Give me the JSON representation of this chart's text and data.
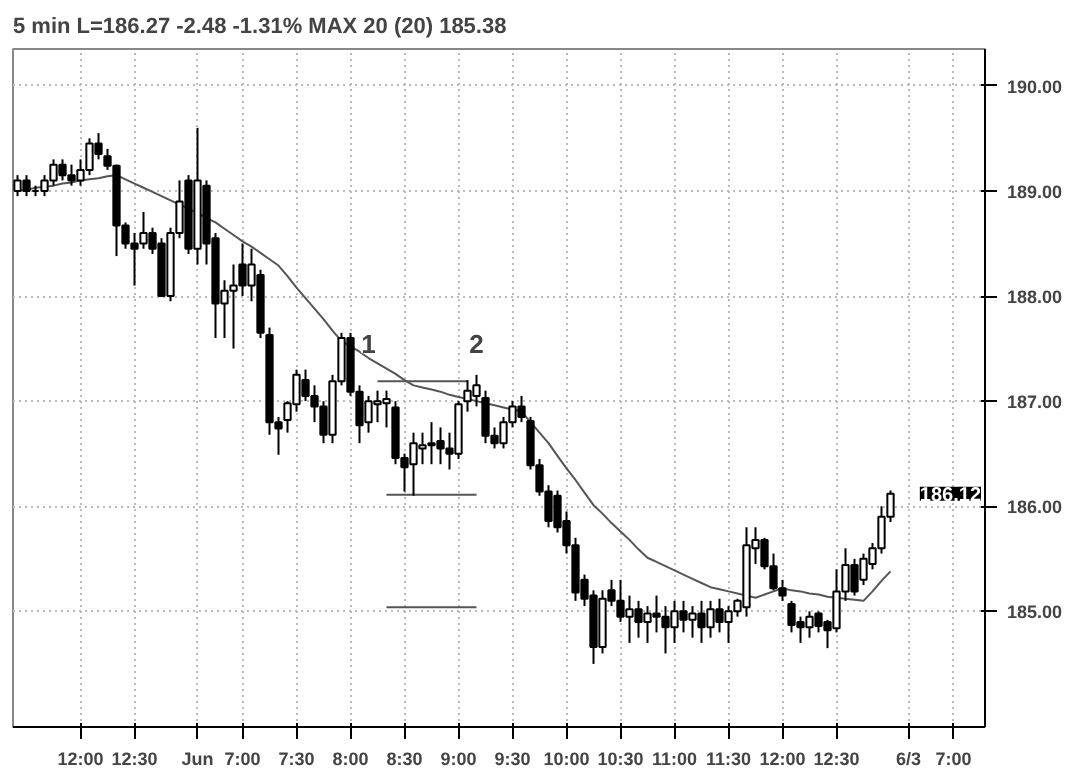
{
  "chart_data": {
    "type": "candlestick",
    "title": "5 min  L=186.27  -2.48  -1.31%  MAX 20 (20)  185.38",
    "color": "#000000",
    "grid": true,
    "categories": [
      null,
      null,
      null,
      null,
      null,
      null,
      null,
      "12:00",
      null,
      null,
      null,
      null,
      null,
      "12:30",
      null,
      null,
      null,
      null,
      null,
      null,
      "Jun",
      null,
      null,
      null,
      null,
      "7:00",
      null,
      null,
      null,
      null,
      null,
      "7:30",
      null,
      null,
      null,
      null,
      null,
      "8:00",
      null,
      null,
      null,
      null,
      null,
      "8:30",
      null,
      null,
      null,
      null,
      null,
      "9:00",
      null,
      null,
      null,
      null,
      null,
      "9:30",
      null,
      null,
      null,
      null,
      null,
      "10:00",
      null,
      null,
      null,
      null,
      null,
      "10:30",
      null,
      null,
      null,
      null,
      null,
      "11:00",
      null,
      null,
      null,
      null,
      null,
      "11:30",
      null,
      null,
      null,
      null,
      null,
      "12:00",
      null,
      null,
      null,
      null,
      null,
      "12:30",
      null,
      null,
      null,
      null,
      null,
      null,
      null,
      "6/3",
      null,
      null,
      null,
      null,
      "7:00",
      null,
      null,
      null
    ],
    "ohlc": [
      [
        189.0,
        189.15,
        188.95,
        189.1
      ],
      [
        189.1,
        189.15,
        188.95,
        189.0
      ],
      [
        189.0,
        189.05,
        188.95,
        189.0
      ],
      [
        189.0,
        189.15,
        188.95,
        189.1
      ],
      [
        189.1,
        189.3,
        189.05,
        189.25
      ],
      [
        189.25,
        189.3,
        189.1,
        189.15
      ],
      [
        189.15,
        189.25,
        189.05,
        189.1
      ],
      [
        189.1,
        189.3,
        189.05,
        189.2
      ],
      [
        189.2,
        189.5,
        189.15,
        189.45
      ],
      [
        189.45,
        189.55,
        189.3,
        189.35
      ],
      [
        189.33,
        189.4,
        189.2,
        189.24
      ],
      [
        189.24,
        189.25,
        188.38,
        188.67
      ],
      [
        188.67,
        188.7,
        188.45,
        188.5
      ],
      [
        188.5,
        188.6,
        188.1,
        188.45
      ],
      [
        188.5,
        188.8,
        188.45,
        188.6
      ],
      [
        188.6,
        188.65,
        188.4,
        188.45
      ],
      [
        188.5,
        188.55,
        188.0,
        188.0
      ],
      [
        188.0,
        188.65,
        187.95,
        188.6
      ],
      [
        188.6,
        189.1,
        188.55,
        188.9
      ],
      [
        189.1,
        189.15,
        188.4,
        188.45
      ],
      [
        188.45,
        189.6,
        188.3,
        189.1
      ],
      [
        189.05,
        189.1,
        188.3,
        188.5
      ],
      [
        188.55,
        188.6,
        187.6,
        187.93
      ],
      [
        187.93,
        188.15,
        187.6,
        188.05
      ],
      [
        188.05,
        188.3,
        187.5,
        188.1
      ],
      [
        188.3,
        188.5,
        188.0,
        188.1
      ],
      [
        188.1,
        188.45,
        187.95,
        188.3
      ],
      [
        188.2,
        188.25,
        187.6,
        187.65
      ],
      [
        187.63,
        187.7,
        186.68,
        186.8
      ],
      [
        186.8,
        186.85,
        186.49,
        186.74
      ],
      [
        186.82,
        187.0,
        186.7,
        186.98
      ],
      [
        186.97,
        187.3,
        186.9,
        187.25
      ],
      [
        187.2,
        187.3,
        187.0,
        187.05
      ],
      [
        187.05,
        187.15,
        186.8,
        186.95
      ],
      [
        186.95,
        187.0,
        186.6,
        186.68
      ],
      [
        186.68,
        187.25,
        186.6,
        187.19
      ],
      [
        187.19,
        187.65,
        187.15,
        187.6
      ],
      [
        187.6,
        187.65,
        187.05,
        187.09
      ],
      [
        187.09,
        187.15,
        186.6,
        186.77
      ],
      [
        186.8,
        187.05,
        186.7,
        187.0
      ],
      [
        186.97,
        187.1,
        186.8,
        187.0
      ],
      [
        186.98,
        187.1,
        186.75,
        187.02
      ],
      [
        186.94,
        187.0,
        186.4,
        186.46
      ],
      [
        186.46,
        186.5,
        186.14,
        186.37
      ],
      [
        186.4,
        186.7,
        186.1,
        186.6
      ],
      [
        186.55,
        186.7,
        186.4,
        186.58
      ],
      [
        186.58,
        186.8,
        186.4,
        186.6
      ],
      [
        186.62,
        186.75,
        186.4,
        186.55
      ],
      [
        186.55,
        186.7,
        186.35,
        186.5
      ],
      [
        186.5,
        187.0,
        186.45,
        186.97
      ],
      [
        187.0,
        187.2,
        186.9,
        187.1
      ],
      [
        187.05,
        187.25,
        186.95,
        187.15
      ],
      [
        187.03,
        187.1,
        186.6,
        186.67
      ],
      [
        186.67,
        186.75,
        186.55,
        186.6
      ],
      [
        186.6,
        186.85,
        186.55,
        186.8
      ],
      [
        186.8,
        187.0,
        186.75,
        186.95
      ],
      [
        186.95,
        187.05,
        186.8,
        186.85
      ],
      [
        186.81,
        186.85,
        186.35,
        186.39
      ],
      [
        186.39,
        186.45,
        186.1,
        186.14
      ],
      [
        186.14,
        186.2,
        185.8,
        185.86
      ],
      [
        186.1,
        186.15,
        185.75,
        185.8
      ],
      [
        185.86,
        185.95,
        185.55,
        185.63
      ],
      [
        185.63,
        185.7,
        185.1,
        185.18
      ],
      [
        185.3,
        185.35,
        185.05,
        185.12
      ],
      [
        185.15,
        185.2,
        184.5,
        184.66
      ],
      [
        184.66,
        185.2,
        184.6,
        185.12
      ],
      [
        185.2,
        185.3,
        185.05,
        185.1
      ],
      [
        185.1,
        185.3,
        184.9,
        184.95
      ],
      [
        184.95,
        185.15,
        184.7,
        185.02
      ],
      [
        185.02,
        185.1,
        184.75,
        184.9
      ],
      [
        184.9,
        185.05,
        184.7,
        184.98
      ],
      [
        184.98,
        185.15,
        184.8,
        184.95
      ],
      [
        184.95,
        185.05,
        184.6,
        184.85
      ],
      [
        184.85,
        185.1,
        184.7,
        185.0
      ],
      [
        185.0,
        185.1,
        184.8,
        184.92
      ],
      [
        184.92,
        185.05,
        184.75,
        184.98
      ],
      [
        184.98,
        185.1,
        184.7,
        184.85
      ],
      [
        184.85,
        185.1,
        184.75,
        185.02
      ],
      [
        185.02,
        185.12,
        184.8,
        184.9
      ],
      [
        184.9,
        185.05,
        184.7,
        185.0
      ],
      [
        185.0,
        185.12,
        184.95,
        185.1
      ],
      [
        185.04,
        185.8,
        184.95,
        185.63
      ],
      [
        185.6,
        185.8,
        185.45,
        185.68
      ],
      [
        185.68,
        185.7,
        185.4,
        185.43
      ],
      [
        185.43,
        185.55,
        185.2,
        185.22
      ],
      [
        185.22,
        185.3,
        185.1,
        185.15
      ],
      [
        185.07,
        185.1,
        184.8,
        184.87
      ],
      [
        184.9,
        184.95,
        184.7,
        184.85
      ],
      [
        184.85,
        185.0,
        184.75,
        184.95
      ],
      [
        184.98,
        185.0,
        184.8,
        184.86
      ],
      [
        184.9,
        184.92,
        184.65,
        184.82
      ],
      [
        184.84,
        185.4,
        184.8,
        185.19
      ],
      [
        185.19,
        185.6,
        185.1,
        185.44
      ],
      [
        185.44,
        185.5,
        185.15,
        185.19
      ],
      [
        185.3,
        185.55,
        185.25,
        185.5
      ],
      [
        185.45,
        185.65,
        185.4,
        185.6
      ],
      [
        185.6,
        186.0,
        185.55,
        185.9
      ],
      [
        185.9,
        186.15,
        185.85,
        186.12
      ],
      null,
      null,
      null,
      null,
      null,
      null,
      null,
      null,
      null,
      null
    ],
    "series": [
      {
        "type": "line",
        "color": "#555555",
        "values": [
          189.0,
          189.01,
          189.03,
          189.04,
          189.05,
          189.07,
          189.08,
          189.1,
          189.11,
          189.12,
          189.14,
          189.15,
          189.11,
          189.07,
          189.03,
          188.99,
          188.95,
          188.91,
          188.87,
          188.83,
          188.79,
          188.74,
          188.7,
          188.64,
          188.58,
          188.52,
          188.47,
          188.41,
          188.35,
          188.29,
          188.19,
          188.08,
          187.98,
          187.88,
          187.78,
          187.67,
          187.57,
          187.52,
          187.47,
          187.41,
          187.36,
          187.31,
          187.26,
          187.2,
          187.15,
          187.13,
          187.11,
          187.09,
          187.06,
          187.04,
          187.02,
          187.0,
          186.98,
          186.96,
          186.94,
          186.92,
          186.9,
          186.8,
          186.7,
          186.6,
          186.48,
          186.36,
          186.25,
          186.13,
          186.01,
          185.93,
          185.84,
          185.76,
          185.68,
          185.59,
          185.51,
          185.47,
          185.43,
          185.39,
          185.35,
          185.31,
          185.27,
          185.23,
          185.21,
          185.19,
          185.17,
          185.15,
          185.13,
          185.16,
          185.19,
          185.22,
          185.2,
          185.19,
          185.17,
          185.16,
          185.14,
          185.13,
          185.12,
          185.11,
          185.1,
          185.19,
          185.29,
          185.38,
          null,
          null,
          null,
          null,
          null,
          null,
          null,
          null,
          null,
          null
        ]
      },
      {
        "type": "line",
        "color": "#555555",
        "values": [
          null,
          null,
          null,
          null,
          null,
          null,
          null,
          null,
          null,
          null,
          null,
          null,
          null,
          null,
          null,
          null,
          null,
          null,
          null,
          null,
          null,
          null,
          null,
          null,
          null,
          null,
          null,
          null,
          null,
          null,
          null,
          null,
          null,
          null,
          null,
          null,
          null,
          null,
          null,
          null,
          187.19,
          187.19,
          187.19,
          187.19,
          187.19,
          187.19,
          187.19,
          187.19,
          187.19,
          187.19,
          187.19,
          null,
          null,
          null,
          null,
          null,
          null,
          null,
          null,
          null,
          null,
          null,
          null,
          null,
          null,
          null,
          null,
          null,
          null,
          null,
          null,
          null,
          null,
          null,
          null,
          null,
          null,
          null,
          null,
          null,
          null,
          null,
          null,
          null,
          null,
          null,
          null,
          null,
          null,
          null,
          null,
          null,
          null,
          null,
          null,
          null,
          null,
          null,
          null,
          null,
          null,
          null,
          null,
          null,
          null,
          null,
          null,
          null
        ]
      },
      {
        "type": "line",
        "color": "#555555",
        "values": [
          null,
          null,
          null,
          null,
          null,
          null,
          null,
          null,
          null,
          null,
          null,
          null,
          null,
          null,
          null,
          null,
          null,
          null,
          null,
          null,
          null,
          null,
          null,
          null,
          null,
          null,
          null,
          null,
          null,
          null,
          null,
          null,
          null,
          null,
          null,
          null,
          null,
          null,
          null,
          null,
          null,
          186.11,
          186.11,
          186.11,
          186.11,
          186.11,
          186.11,
          186.11,
          186.11,
          186.11,
          186.11,
          186.11,
          null,
          null,
          null,
          null,
          null,
          null,
          null,
          null,
          null,
          null,
          null,
          null,
          null,
          null,
          null,
          null,
          null,
          null,
          null,
          null,
          null,
          null,
          null,
          null,
          null,
          null,
          null,
          null,
          null,
          null,
          null,
          null,
          null,
          null,
          null,
          null,
          null,
          null,
          null,
          null,
          null,
          null,
          null,
          null,
          null,
          null,
          null,
          null,
          null,
          null,
          null,
          null,
          null,
          null,
          null,
          null
        ]
      },
      {
        "type": "line",
        "color": "#555555",
        "values": [
          null,
          null,
          null,
          null,
          null,
          null,
          null,
          null,
          null,
          null,
          null,
          null,
          null,
          null,
          null,
          null,
          null,
          null,
          null,
          null,
          null,
          null,
          null,
          null,
          null,
          null,
          null,
          null,
          null,
          null,
          null,
          null,
          null,
          null,
          null,
          null,
          null,
          null,
          null,
          null,
          null,
          185.04,
          185.04,
          185.04,
          185.04,
          185.04,
          185.04,
          185.04,
          185.04,
          185.04,
          185.04,
          185.04,
          null,
          null,
          null,
          null,
          null,
          null,
          null,
          null,
          null,
          null,
          null,
          null,
          null,
          null,
          null,
          null,
          null,
          null,
          null,
          null,
          null,
          null,
          null,
          null,
          null,
          null,
          null,
          null,
          null,
          null,
          null,
          null,
          null,
          null,
          null,
          null,
          null,
          null,
          null,
          null,
          null,
          null,
          null,
          null,
          null,
          null,
          null,
          null,
          null,
          null,
          null,
          null,
          null,
          null,
          null,
          null
        ]
      }
    ],
    "annotations": [
      {
        "text": "1",
        "y": 187.19
      },
      {
        "text": "2",
        "y": 187.19
      },
      "186.12"
    ],
    "ylim": [
      183.9,
      190.35
    ],
    "yticks": [
      {
        "value": 185,
        "label": "185.00"
      },
      {
        "value": 186,
        "label": "186.00"
      },
      {
        "value": 187,
        "label": "187.00"
      },
      {
        "value": 188,
        "label": "188.00"
      },
      {
        "value": 189,
        "label": "189.00"
      },
      {
        "value": 190,
        "label": "190.00"
      }
    ]
  }
}
